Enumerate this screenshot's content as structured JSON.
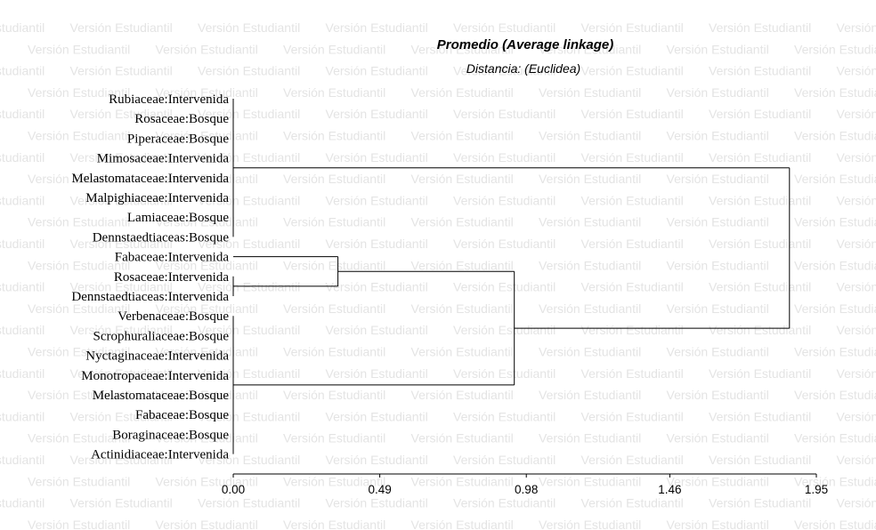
{
  "watermark": {
    "text": "Versión Estudiantil",
    "color": "#e4e4e4"
  },
  "chart_data": {
    "type": "dendrogram",
    "title": "Promedio (Average linkage)",
    "subtitle": "Distancia: (Euclidea)",
    "xlim": [
      0,
      1.95
    ],
    "xticks": [
      0.0,
      0.49,
      0.98,
      1.46,
      1.95
    ],
    "xtick_labels": [
      "0.00",
      "0.49",
      "0.98",
      "1.46",
      "1.95"
    ],
    "leaves": [
      "Rubiaceae:Intervenida",
      "Rosaceae:Bosque",
      "Piperaceae:Bosque",
      "Mimosaceae:Intervenida",
      "Melastomataceae:Intervenida",
      "Malpighiaceae:Intervenida",
      "Lamiaceae:Bosque",
      "Dennstaedtiaceas:Bosque",
      "Fabaceae:Intervenida",
      "Rosaceae:Intervenida",
      "Dennstaedtiaceas:Intervenida",
      "Verbenaceae:Bosque",
      "Scrophuraliaceae:Bosque",
      "Nyctaginaceae:Intervenida",
      "Monotropaceae:Intervenida",
      "Melastomataceae:Bosque",
      "Fabaceae:Bosque",
      "Boraginaceae:Bosque",
      "Actinidiaceae:Intervenida"
    ],
    "merges": [
      {
        "id": "A",
        "members": [
          0,
          1,
          2,
          3,
          4,
          5,
          6,
          7
        ],
        "height": 0.0
      },
      {
        "id": "B",
        "members": [
          9,
          10
        ],
        "height": 0.0
      },
      {
        "id": "C",
        "members": [
          11,
          12,
          13,
          14,
          15,
          16,
          17,
          18
        ],
        "height": 0.0
      },
      {
        "id": "D",
        "children": [
          "leaf:8",
          "B"
        ],
        "height": 0.35
      },
      {
        "id": "E",
        "children": [
          "D",
          "C"
        ],
        "height": 0.94
      },
      {
        "id": "F",
        "children": [
          "A",
          "E"
        ],
        "height": 1.86
      }
    ]
  }
}
